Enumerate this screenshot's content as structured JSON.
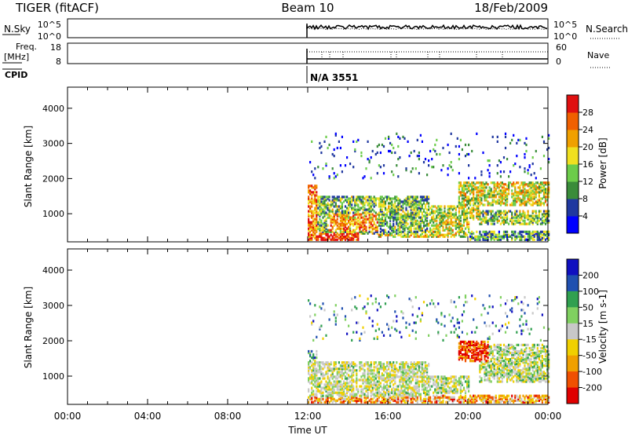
{
  "header": {
    "radar": "TIGER (fitACF)",
    "beam": "Beam 10",
    "date": "18/Feb/2009"
  },
  "noise_panel": {
    "left_label": "N.Sky",
    "right_label": "N.Search",
    "left_ticks": [
      "10^5",
      "10^0"
    ],
    "right_ticks": [
      "10^5",
      "10^0"
    ]
  },
  "freq_panel": {
    "left_label_1": "Freq.",
    "left_label_2": "[MHz]",
    "right_label": "Nave",
    "left_ticks": [
      "18",
      "8"
    ],
    "right_ticks": [
      "60",
      "0"
    ]
  },
  "cpid": {
    "label": "CPID",
    "value": "N/A 3551"
  },
  "chart_data": [
    {
      "type": "heatmap",
      "quantity": "Power",
      "ylabel": "Slant Range [km]",
      "xlabel": "Time UT",
      "ylim": [
        200,
        4600
      ],
      "y_ticks": [
        1000,
        2000,
        3000,
        4000
      ],
      "x_tick_labels": [
        "00:00",
        "04:00",
        "08:00",
        "12:00",
        "16:00",
        "20:00",
        "00:00"
      ],
      "xlim_hours": [
        0,
        24
      ],
      "data_start_hour": 12,
      "colorbar": {
        "label": "Power [dB]",
        "ticks": [
          "4",
          "8",
          "12",
          "16",
          "20",
          "24",
          "28"
        ],
        "colors": [
          "#0000ff",
          "#2038a0",
          "#3a8c3a",
          "#6ccc4a",
          "#f0e020",
          "#f0a000",
          "#f06000",
          "#e01010"
        ]
      },
      "regions": [
        {
          "t0": 12.0,
          "t1": 12.4,
          "r0": 200,
          "r1": 1800,
          "level": 0.75
        },
        {
          "t0": 12.2,
          "t1": 14.5,
          "r0": 250,
          "r1": 450,
          "level": 0.95
        },
        {
          "t0": 13.0,
          "t1": 15.5,
          "r0": 500,
          "r1": 1000,
          "level": 0.7
        },
        {
          "t0": 12.0,
          "t1": 18.0,
          "r0": 400,
          "r1": 1500,
          "level": 0.4
        },
        {
          "t0": 15.5,
          "t1": 20.0,
          "r0": 300,
          "r1": 800,
          "level": 0.55
        },
        {
          "t0": 18.0,
          "t1": 20.5,
          "r0": 800,
          "r1": 1200,
          "level": 0.5
        },
        {
          "t0": 19.5,
          "t1": 24.0,
          "r0": 1200,
          "r1": 1900,
          "level": 0.55
        },
        {
          "t0": 20.5,
          "t1": 24.0,
          "r0": 700,
          "r1": 1100,
          "level": 0.45
        },
        {
          "t0": 20.0,
          "t1": 24.0,
          "r0": 250,
          "r1": 500,
          "level": 0.35
        },
        {
          "t0": 12.0,
          "t1": 24.0,
          "r0": 2000,
          "r1": 3300,
          "level": 0.2
        }
      ]
    },
    {
      "type": "heatmap",
      "quantity": "Velocity",
      "ylabel": "Slant Range [km]",
      "xlabel": "Time UT",
      "ylim": [
        200,
        4600
      ],
      "y_ticks": [
        1000,
        2000,
        3000,
        4000
      ],
      "x_tick_labels": [
        "00:00",
        "04:00",
        "08:00",
        "12:00",
        "16:00",
        "20:00",
        "00:00"
      ],
      "xlim_hours": [
        0,
        24
      ],
      "data_start_hour": 12,
      "colorbar": {
        "label": "Velocity [m s-1]",
        "ticks": [
          "200",
          "100",
          "50",
          "15",
          "-15",
          "-50",
          "-100",
          "-200"
        ],
        "colors": [
          "#1010c0",
          "#2050b0",
          "#30a050",
          "#80d060",
          "#c8c8c8",
          "#f0d000",
          "#f0a000",
          "#f05000",
          "#e00000"
        ]
      },
      "regions": [
        {
          "t0": 12.0,
          "t1": 18.0,
          "r0": 400,
          "r1": 1400,
          "level": 0.55
        },
        {
          "t0": 12.0,
          "t1": 24.0,
          "r0": 250,
          "r1": 450,
          "level": 0.7
        },
        {
          "t0": 12.0,
          "t1": 12.4,
          "r0": 1300,
          "r1": 1700,
          "level": 0.3
        },
        {
          "t0": 19.5,
          "t1": 21.0,
          "r0": 1400,
          "r1": 2000,
          "level": 0.9
        },
        {
          "t0": 20.5,
          "t1": 24.0,
          "r0": 800,
          "r1": 1900,
          "level": 0.5
        },
        {
          "t0": 16.0,
          "t1": 20.0,
          "r0": 500,
          "r1": 1000,
          "level": 0.5
        },
        {
          "t0": 12.0,
          "t1": 24.0,
          "r0": 2000,
          "r1": 3300,
          "level": 0.3
        }
      ]
    }
  ]
}
